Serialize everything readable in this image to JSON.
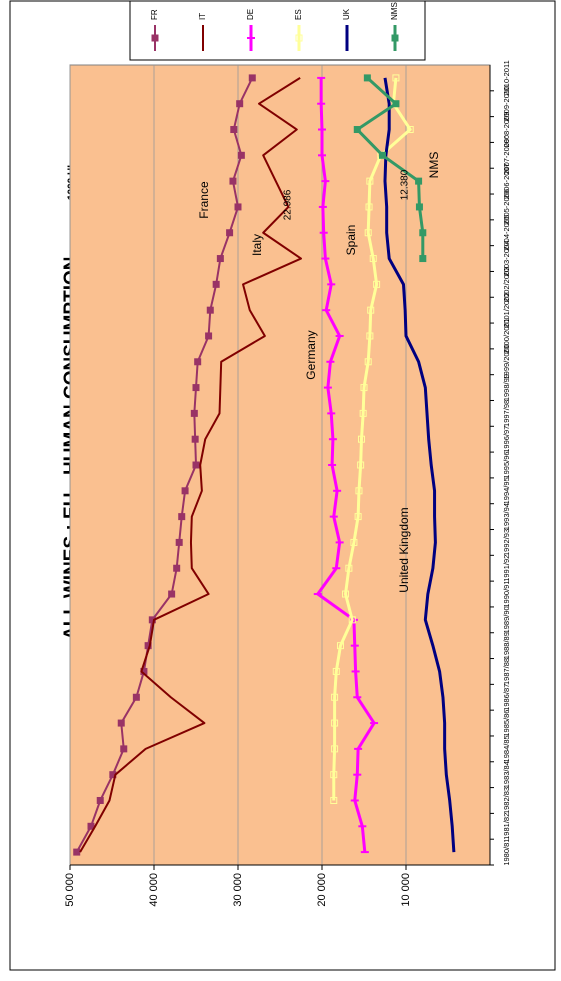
{
  "chart_data": {
    "type": "line",
    "title": "ALL WINES  :  EU",
    "subtitle": "HUMAN CONSUMPTION",
    "unit": "1000 HL",
    "categories": [
      "1980/81",
      "1981/82",
      "1982/83",
      "1983/84",
      "1984/85",
      "1985/86",
      "1986/87",
      "1987/88",
      "1988/89",
      "1989/90",
      "1990/91",
      "1991/92",
      "1992/93",
      "1993/94",
      "1994/95",
      "1995/96",
      "1996/97",
      "1997/98",
      "1998/99",
      "1999/2000",
      "2000/2001",
      "2001/2002",
      "2002/2003",
      "2003-2004",
      "2004-2005",
      "2005-2006",
      "2006-2007",
      "2007-2008°",
      "2008-2009",
      "2009-2010",
      "2010-2011"
    ],
    "series": [
      {
        "name": "FR",
        "color": "#993366",
        "width": 2,
        "marker": "square",
        "values": [
          49200,
          47500,
          46400,
          44900,
          43600,
          43900,
          42100,
          41200,
          40700,
          40200,
          37900,
          37300,
          37000,
          36700,
          36300,
          35000,
          35100,
          35200,
          35000,
          34800,
          33500,
          33300,
          32600,
          32100,
          31000,
          30000,
          30600,
          29600,
          30500,
          29800,
          28300
        ]
      },
      {
        "name": "IT",
        "color": "#800000",
        "width": 2,
        "marker": "none",
        "values": [
          48800,
          47000,
          45300,
          44600,
          41000,
          34000,
          38000,
          41500,
          40500,
          40000,
          33500,
          35500,
          35600,
          35500,
          34300,
          34500,
          33900,
          32200,
          32100,
          32000,
          26800,
          28600,
          29400,
          22500,
          27000,
          24000,
          25500,
          27000,
          23000,
          27500,
          22600
        ]
      },
      {
        "name": "DE",
        "color": "#FF00FF",
        "width": 3,
        "marker": "dash",
        "values": [
          14900,
          15200,
          16100,
          15800,
          15700,
          13800,
          15800,
          16000,
          16100,
          16200,
          20500,
          18300,
          17900,
          18600,
          18200,
          18800,
          18700,
          18900,
          19300,
          19000,
          17900,
          19500,
          18900,
          19600,
          19800,
          19900,
          19600,
          20000,
          20000,
          20100,
          20100
        ]
      },
      {
        "name": "ES",
        "color": "#FFFF99",
        "width": 3,
        "marker": "open-square",
        "values": [
          null,
          null,
          18600,
          18600,
          18500,
          18500,
          18500,
          18300,
          17800,
          16400,
          17200,
          16800,
          16200,
          15700,
          15600,
          15400,
          15300,
          15100,
          15000,
          14500,
          14300,
          14200,
          13500,
          13900,
          14500,
          14400,
          14300,
          13000,
          9500,
          11500,
          11200
        ]
      },
      {
        "name": "UK",
        "color": "#000080",
        "width": 3,
        "marker": "none",
        "values": [
          4300,
          4500,
          4800,
          5200,
          5400,
          5400,
          5600,
          6000,
          6800,
          7700,
          7400,
          6800,
          6500,
          6600,
          6600,
          7000,
          7300,
          7500,
          7700,
          8500,
          10000,
          10100,
          10300,
          12000,
          12300,
          12300,
          12500,
          12400,
          12000,
          12000,
          12500
        ]
      },
      {
        "name": "NMS",
        "color": "#339966",
        "width": 3,
        "marker": "square",
        "values": [
          null,
          null,
          null,
          null,
          null,
          null,
          null,
          null,
          null,
          null,
          null,
          null,
          null,
          null,
          null,
          null,
          null,
          null,
          null,
          null,
          null,
          null,
          null,
          8000,
          8000,
          8400,
          8500,
          12800,
          15800,
          11200,
          14600
        ]
      }
    ],
    "ylim": [
      0,
      50000
    ],
    "yticks": [
      {
        "value": 10000,
        "label": "10 000"
      },
      {
        "value": 20000,
        "label": "20 000"
      },
      {
        "value": 30000,
        "label": "30 000"
      },
      {
        "value": 40000,
        "label": "40 000"
      },
      {
        "value": 50000,
        "label": "50 000"
      }
    ],
    "grid": true,
    "plot_background": "#FAC090",
    "legend": "top-right",
    "annotations": [
      "France",
      "Italy",
      "22.986",
      "Germany",
      "Spain",
      "12.380",
      "NMS",
      "United Kingdom"
    ]
  }
}
